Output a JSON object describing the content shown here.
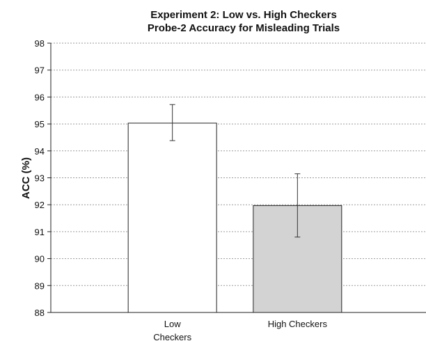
{
  "chart_data": {
    "type": "bar",
    "title_lines": [
      "Experiment 2: Low vs. High Checkers",
      "Probe-2 Accuracy for Misleading Trials"
    ],
    "xlabel": "",
    "ylabel": "ACC (%)",
    "ylim": [
      88,
      98
    ],
    "yticks": [
      88,
      89,
      90,
      91,
      92,
      93,
      94,
      95,
      96,
      97,
      98
    ],
    "grid": true,
    "categories": [
      [
        "Low",
        "Checkers"
      ],
      [
        "High Checkers"
      ]
    ],
    "values": [
      95.03,
      91.97
    ],
    "error_upper": [
      95.72,
      93.15
    ],
    "error_lower": [
      94.38,
      90.8
    ],
    "colors": [
      "#ffffff",
      "#d3d3d3"
    ],
    "edge_color": "#222222"
  }
}
